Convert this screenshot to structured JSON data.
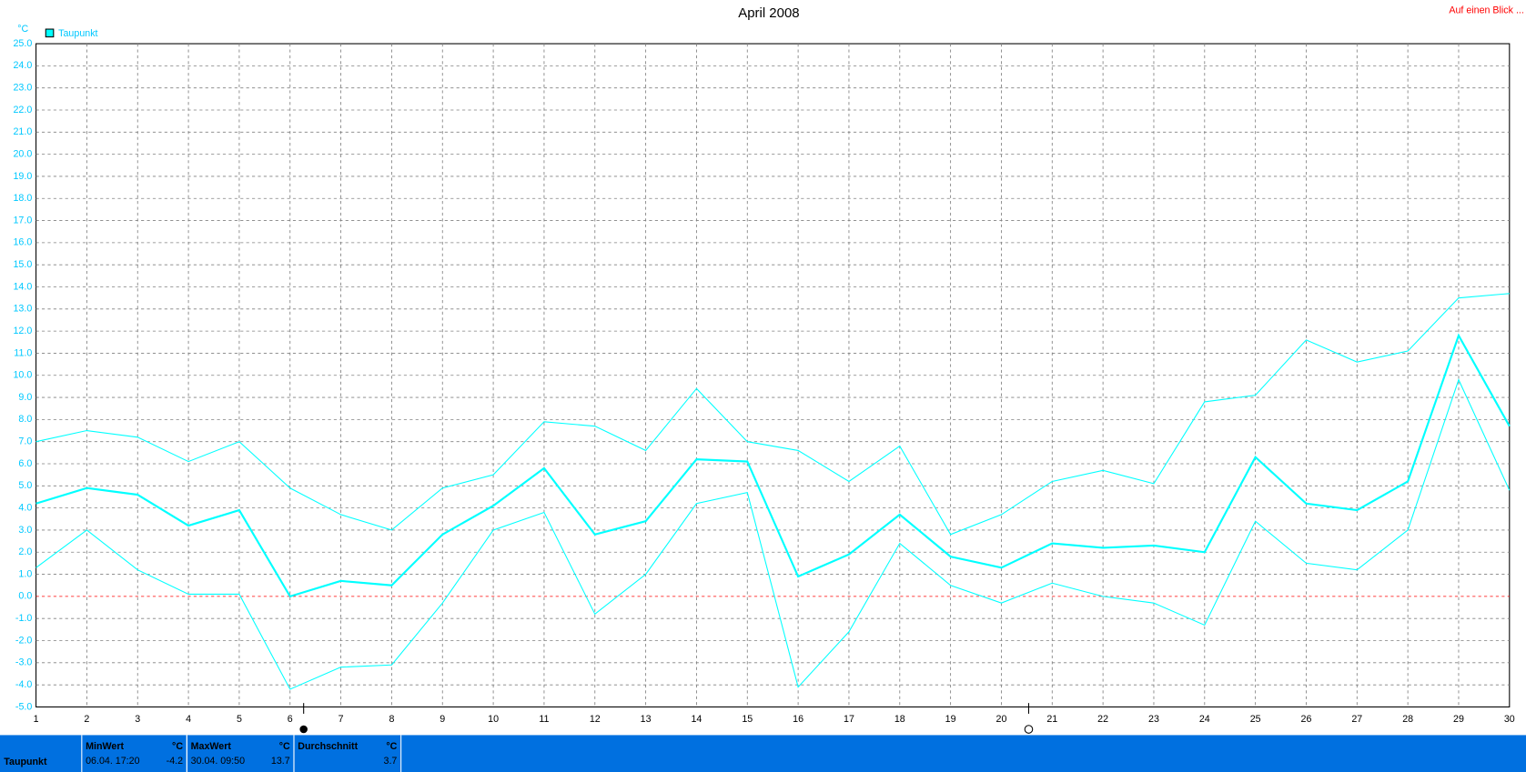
{
  "chart_data": {
    "type": "line",
    "title": "April 2008",
    "corner_link": "Auf einen Blick ...",
    "y_unit": "°C",
    "legend": "top-left",
    "x": [
      1,
      2,
      3,
      4,
      5,
      6,
      7,
      8,
      9,
      10,
      11,
      12,
      13,
      14,
      15,
      16,
      17,
      18,
      19,
      20,
      21,
      22,
      23,
      24,
      25,
      26,
      27,
      28,
      29,
      30
    ],
    "xlim": [
      1,
      30
    ],
    "xticks": [
      1,
      2,
      3,
      4,
      5,
      6,
      7,
      8,
      9,
      10,
      11,
      12,
      13,
      14,
      15,
      16,
      17,
      18,
      19,
      20,
      21,
      22,
      23,
      24,
      25,
      26,
      27,
      28,
      29,
      30
    ],
    "series": [
      {
        "name": "Taupunkt",
        "color": "#00ffff",
        "values": [
          4.2,
          4.9,
          4.6,
          3.2,
          3.9,
          0.0,
          0.7,
          0.5,
          2.8,
          4.1,
          5.8,
          2.8,
          3.4,
          6.2,
          6.1,
          0.9,
          1.9,
          3.7,
          1.8,
          1.3,
          2.4,
          2.2,
          2.3,
          2.0,
          6.3,
          4.2,
          3.9,
          5.2,
          11.8,
          7.7
        ],
        "max": [
          7.0,
          7.5,
          7.2,
          6.1,
          7.0,
          4.9,
          3.7,
          3.0,
          4.9,
          5.5,
          7.9,
          7.7,
          6.6,
          9.4,
          7.0,
          6.6,
          5.2,
          6.8,
          2.8,
          3.7,
          5.2,
          5.7,
          5.1,
          8.8,
          9.1,
          11.6,
          10.6,
          11.1,
          13.5,
          13.7
        ],
        "min": [
          1.3,
          3.0,
          1.2,
          0.1,
          0.1,
          -4.2,
          -3.2,
          -3.1,
          -0.3,
          3.0,
          3.8,
          -0.8,
          1.0,
          4.2,
          4.7,
          -4.1,
          -1.6,
          2.4,
          0.5,
          -0.3,
          0.6,
          0.0,
          -0.3,
          -1.3,
          3.4,
          1.5,
          1.2,
          3.0,
          9.8,
          4.8
        ]
      }
    ],
    "ylim": [
      -5,
      25
    ],
    "yticks": [
      {
        "value": -5,
        "label": "-5.0"
      },
      {
        "value": -4,
        "label": "-4.0"
      },
      {
        "value": -3,
        "label": "-3.0"
      },
      {
        "value": -2,
        "label": "-2.0"
      },
      {
        "value": -1,
        "label": "-1.0"
      },
      {
        "value": 0,
        "label": "0.0"
      },
      {
        "value": 1,
        "label": "1.0"
      },
      {
        "value": 2,
        "label": "2.0"
      },
      {
        "value": 3,
        "label": "3.0"
      },
      {
        "value": 4,
        "label": "4.0"
      },
      {
        "value": 5,
        "label": "5.0"
      },
      {
        "value": 6,
        "label": "6.0"
      },
      {
        "value": 7,
        "label": "7.0"
      },
      {
        "value": 8,
        "label": "8.0"
      },
      {
        "value": 9,
        "label": "9.0"
      },
      {
        "value": 10,
        "label": "10.0"
      },
      {
        "value": 11,
        "label": "11.0"
      },
      {
        "value": 12,
        "label": "12.0"
      },
      {
        "value": 13,
        "label": "13.0"
      },
      {
        "value": 14,
        "label": "14.0"
      },
      {
        "value": 15,
        "label": "15.0"
      },
      {
        "value": 16,
        "label": "16.0"
      },
      {
        "value": 17,
        "label": "17.0"
      },
      {
        "value": 18,
        "label": "18.0"
      },
      {
        "value": 19,
        "label": "19.0"
      },
      {
        "value": 20,
        "label": "20.0"
      },
      {
        "value": 21,
        "label": "21.0"
      },
      {
        "value": 22,
        "label": "22.0"
      },
      {
        "value": 23,
        "label": "23.0"
      },
      {
        "value": 24,
        "label": "24.0"
      },
      {
        "value": 25,
        "label": "25.0"
      }
    ],
    "grid": true
  },
  "footer": {
    "row_label": "Taupunkt",
    "cells": [
      {
        "title": "MinWert",
        "unit": "°C",
        "time": "06.04.  17:20",
        "value": "-4.2"
      },
      {
        "title": "MaxWert",
        "unit": "°C",
        "time": "30.04.  09:50",
        "value": "13.7"
      },
      {
        "title": "Durchschnitt",
        "unit": "°C",
        "value": "3.7"
      }
    ]
  }
}
